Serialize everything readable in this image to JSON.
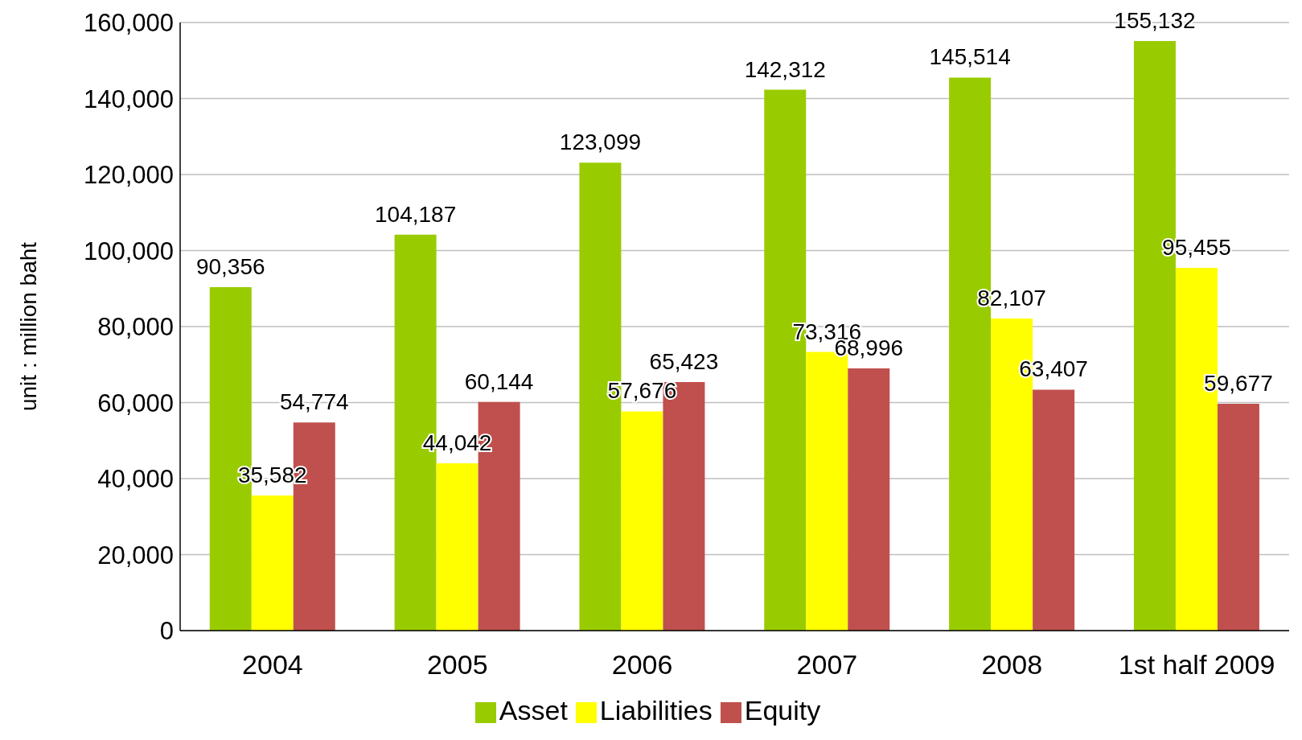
{
  "chart_data": {
    "type": "bar",
    "ylabel": "unit : million baht",
    "categories": [
      "2004",
      "2005",
      "2006",
      "2007",
      "2008",
      "1st half 2009"
    ],
    "series": [
      {
        "name": "Asset",
        "color": "#99cc00",
        "values": [
          90356,
          104187,
          123099,
          142312,
          145514,
          155132
        ],
        "value_labels": [
          "90,356",
          "104,187",
          "123,099",
          "142,312",
          "145,514",
          "155,132"
        ]
      },
      {
        "name": "Liabilities",
        "color": "#ffff00",
        "values": [
          35582,
          44042,
          57676,
          73316,
          82107,
          95455
        ],
        "value_labels": [
          "35,582",
          "44,042",
          "57,676",
          "73,316",
          "82,107",
          "95,455"
        ]
      },
      {
        "name": "Equity",
        "color": "#c0504d",
        "values": [
          54774,
          60144,
          65423,
          68996,
          63407,
          59677
        ],
        "value_labels": [
          "54,774",
          "60,144",
          "65,423",
          "68,996",
          "63,407",
          "59,677"
        ]
      }
    ],
    "ylim": [
      0,
      160000
    ],
    "yticks": [
      0,
      {
        "value": 20000,
        "label": "20,000"
      },
      {
        "value": 40000,
        "label": "40,000"
      },
      {
        "value": 60000,
        "label": "60,000"
      },
      {
        "value": 80000,
        "label": "80,000"
      },
      {
        "value": 100000,
        "label": "100,000"
      },
      {
        "value": 120000,
        "label": "120,000"
      },
      {
        "value": 140000,
        "label": "140,000"
      },
      {
        "value": 160000,
        "label": "160,000"
      }
    ],
    "grid": "y",
    "legend": "bottom"
  }
}
